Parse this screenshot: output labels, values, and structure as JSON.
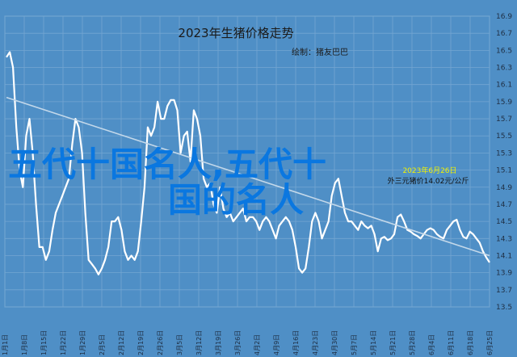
{
  "chart_data": {
    "type": "line",
    "title": "2023年生猪价格走势",
    "subtitle": "绘制：猪友巴巴",
    "ylim": [
      13.5,
      16.9
    ],
    "yticks": [
      "16.9",
      "16.7",
      "16.5",
      "16.3",
      "16.1",
      "15.9",
      "15.7",
      "15.5",
      "15.3",
      "15.1",
      "14.9",
      "14.7",
      "14.5",
      "14.3",
      "14.1",
      "13.9",
      "13.7",
      "13.5"
    ],
    "xticks": [
      "1月1日",
      "1月8日",
      "1月15日",
      "1月22日",
      "1月29日",
      "2月5日",
      "2月12日",
      "2月19日",
      "2月26日",
      "3月5日",
      "3月12日",
      "3月19日",
      "3月26日",
      "4月2日",
      "4月9日",
      "4月16日",
      "4月23日",
      "4月30日",
      "5月7日",
      "5月14日",
      "5月21日",
      "5月28日",
      "6月4日",
      "6月11日",
      "6月18日",
      "6月25日"
    ],
    "grid": true,
    "series": [
      {
        "color": "#ffffff",
        "values": [
          16.42,
          16.48,
          16.3,
          15.6,
          15.1,
          14.9,
          15.5,
          15.7,
          15.3,
          14.7,
          14.2,
          14.2,
          14.05,
          14.15,
          14.4,
          14.6,
          14.7,
          14.8,
          14.9,
          15.0,
          15.4,
          15.7,
          15.6,
          15.3,
          14.6,
          14.05,
          14.0,
          13.95,
          13.88,
          13.95,
          14.05,
          14.2,
          14.5,
          14.5,
          14.55,
          14.4,
          14.15,
          14.05,
          14.1,
          14.05,
          14.15,
          14.5,
          14.9,
          15.6,
          15.5,
          15.6,
          15.9,
          15.7,
          15.7,
          15.85,
          15.92,
          15.92,
          15.8,
          15.3,
          15.5,
          15.55,
          15.2,
          15.8,
          15.7,
          15.5,
          15.0,
          14.9,
          14.95,
          14.7,
          14.6,
          14.9,
          14.65,
          14.55,
          14.6,
          14.5,
          14.55,
          14.6,
          14.65,
          14.5,
          14.55,
          14.55,
          14.5,
          14.4,
          14.5,
          14.55,
          14.5,
          14.4,
          14.3,
          14.45,
          14.5,
          14.55,
          14.5,
          14.4,
          14.2,
          13.95,
          13.9,
          13.95,
          14.2,
          14.5,
          14.6,
          14.5,
          14.3,
          14.4,
          14.5,
          14.8,
          14.95,
          15.0,
          14.8,
          14.6,
          14.5,
          14.5,
          14.45,
          14.4,
          14.5,
          14.45,
          14.42,
          14.45,
          14.35,
          14.15,
          14.3,
          14.32,
          14.28,
          14.3,
          14.35,
          14.55,
          14.58,
          14.5,
          14.4,
          14.38,
          14.35,
          14.33,
          14.3,
          14.35,
          14.4,
          14.42,
          14.4,
          14.35,
          14.32,
          14.3,
          14.4,
          14.45,
          14.5,
          14.52,
          14.4,
          14.32,
          14.3,
          14.38,
          14.35,
          14.3,
          14.25,
          14.15,
          14.08,
          14.02
        ]
      },
      {
        "color": "#c3d8ea",
        "values": [
          15.95,
          14.1
        ]
      }
    ]
  },
  "overlay": {
    "watermark": "五代十国名人,五代十国的名人",
    "annotation_1": "2023年6月26日",
    "annotation_2": "外三元猪价14.02元/公斤"
  }
}
